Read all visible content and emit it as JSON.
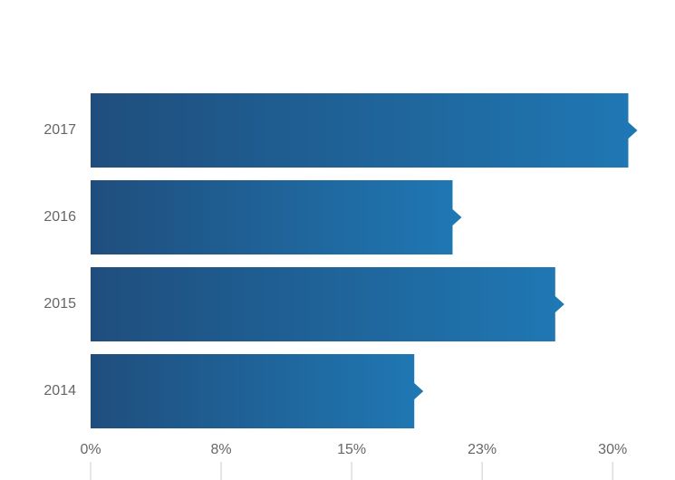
{
  "chart_data": {
    "type": "bar",
    "orientation": "horizontal",
    "categories": [
      "2017",
      "2016",
      "2015",
      "2014"
    ],
    "values": [
      30.9,
      20.8,
      26.7,
      18.6
    ],
    "color": "#1f78b4",
    "xlim": [
      0,
      31.5
    ],
    "xticks": [
      {
        "value": 0,
        "label": "0%"
      },
      {
        "value": 7.5,
        "label": "8%"
      },
      {
        "value": 15,
        "label": "15%"
      },
      {
        "value": 22.5,
        "label": "23%"
      },
      {
        "value": 30,
        "label": "30%"
      }
    ],
    "grid": false
  }
}
